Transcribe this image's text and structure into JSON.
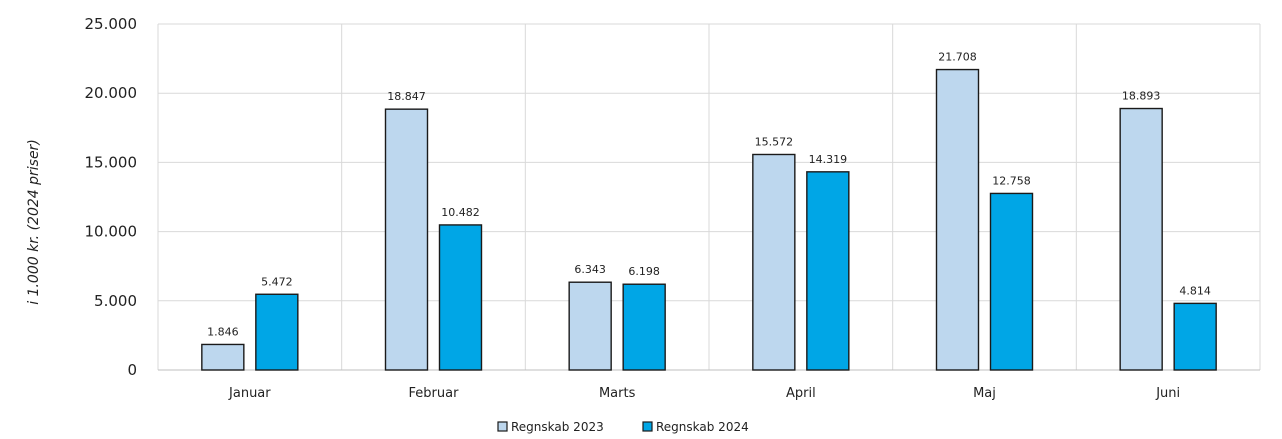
{
  "chart_data": {
    "type": "bar",
    "title": "",
    "xlabel": "",
    "ylabel": "i 1.000 kr. (2024 priser)",
    "ylim": [
      0,
      25000
    ],
    "yticks": [
      0,
      5000,
      10000,
      15000,
      20000,
      25000
    ],
    "ytick_labels": [
      "0",
      "5.000",
      "10.000",
      "15.000",
      "20.000",
      "25.000"
    ],
    "categories": [
      "Januar",
      "Februar",
      "Marts",
      "April",
      "Maj",
      "Juni"
    ],
    "series": [
      {
        "name": "Regnskab 2023",
        "color": "#bdd7ee",
        "values": [
          1846,
          18847,
          6343,
          15572,
          21708,
          18893
        ],
        "labels": [
          "1.846",
          "18.847",
          "6.343",
          "15.572",
          "21.708",
          "18.893"
        ]
      },
      {
        "name": "Regnskab 2024",
        "color": "#00a6e6",
        "values": [
          5472,
          10482,
          6198,
          14319,
          12758,
          4814
        ],
        "labels": [
          "5.472",
          "10.482",
          "6.198",
          "14.319",
          "12.758",
          "4.814"
        ]
      }
    ],
    "grid": true,
    "legend": "bottom-center"
  }
}
